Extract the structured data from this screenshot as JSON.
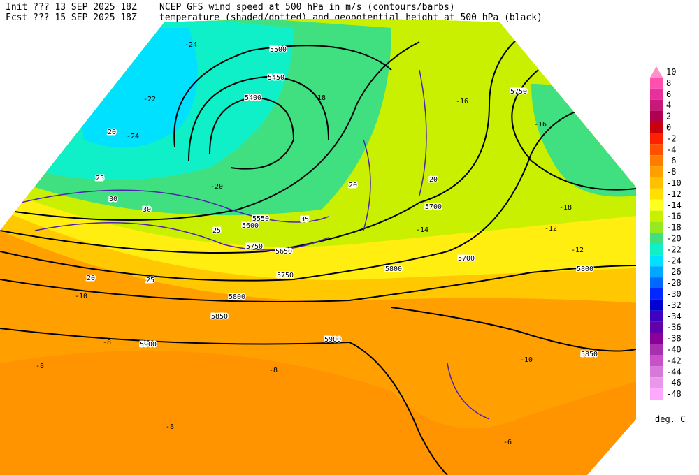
{
  "header": {
    "init": "Init  ??? 13 SEP 2025 18Z",
    "fcst": "Fcst ??? 15 SEP 2025 18Z",
    "line1": "NCEP GFS wind speed at 500 hPa in m/s (contours/barbs)",
    "line2": "temperature (shaded/dotted) and geopotential height at 500 hPa (black)"
  },
  "legend": {
    "unit": "deg. C",
    "items": [
      {
        "label": "10",
        "color": "#ff90c8"
      },
      {
        "label": "8",
        "color": "#ff50b0"
      },
      {
        "label": "6",
        "color": "#e8309c"
      },
      {
        "label": "4",
        "color": "#c81878"
      },
      {
        "label": "2",
        "color": "#b00050"
      },
      {
        "label": "0",
        "color": "#c80010"
      },
      {
        "label": "-2",
        "color": "#ff2000"
      },
      {
        "label": "-4",
        "color": "#ff5000"
      },
      {
        "label": "-6",
        "color": "#ff7c00"
      },
      {
        "label": "-8",
        "color": "#ffa000"
      },
      {
        "label": "-10",
        "color": "#ffc000"
      },
      {
        "label": "-12",
        "color": "#ffe000"
      },
      {
        "label": "-14",
        "color": "#ffff20"
      },
      {
        "label": "-16",
        "color": "#c8f000"
      },
      {
        "label": "-18",
        "color": "#98e820"
      },
      {
        "label": "-20",
        "color": "#40e080"
      },
      {
        "label": "-22",
        "color": "#10f0c8"
      },
      {
        "label": "-24",
        "color": "#00e0ff"
      },
      {
        "label": "-26",
        "color": "#00a8ff"
      },
      {
        "label": "-28",
        "color": "#0068ff"
      },
      {
        "label": "-30",
        "color": "#0028ff"
      },
      {
        "label": "-32",
        "color": "#0000d0"
      },
      {
        "label": "-34",
        "color": "#4000c0"
      },
      {
        "label": "-36",
        "color": "#6000a8"
      },
      {
        "label": "-38",
        "color": "#8a0098"
      },
      {
        "label": "-40",
        "color": "#a830b0"
      },
      {
        "label": "-42",
        "color": "#c850c8"
      },
      {
        "label": "-44",
        "color": "#d878d8"
      },
      {
        "label": "-46",
        "color": "#e898e8"
      },
      {
        "label": "-48",
        "color": "#ffa8ff"
      }
    ]
  },
  "map": {
    "height_labels": [
      "5500",
      "5450",
      "5400",
      "5750",
      "5700",
      "5700",
      "5750",
      "5800",
      "5800",
      "5900",
      "5900",
      "5850",
      "5650",
      "5600",
      "5550",
      "5800",
      "5750",
      "5850"
    ],
    "temp_labels": [
      "-24",
      "-22",
      "-24",
      "-20",
      "-18",
      "-16",
      "-16",
      "-18",
      "-14",
      "-12",
      "-12",
      "-10",
      "-8",
      "-8",
      "-8",
      "-10",
      "-8",
      "-6"
    ],
    "wind_labels": [
      "20",
      "25",
      "30",
      "30",
      "25",
      "35",
      "20",
      "25",
      "20",
      "20"
    ]
  }
}
